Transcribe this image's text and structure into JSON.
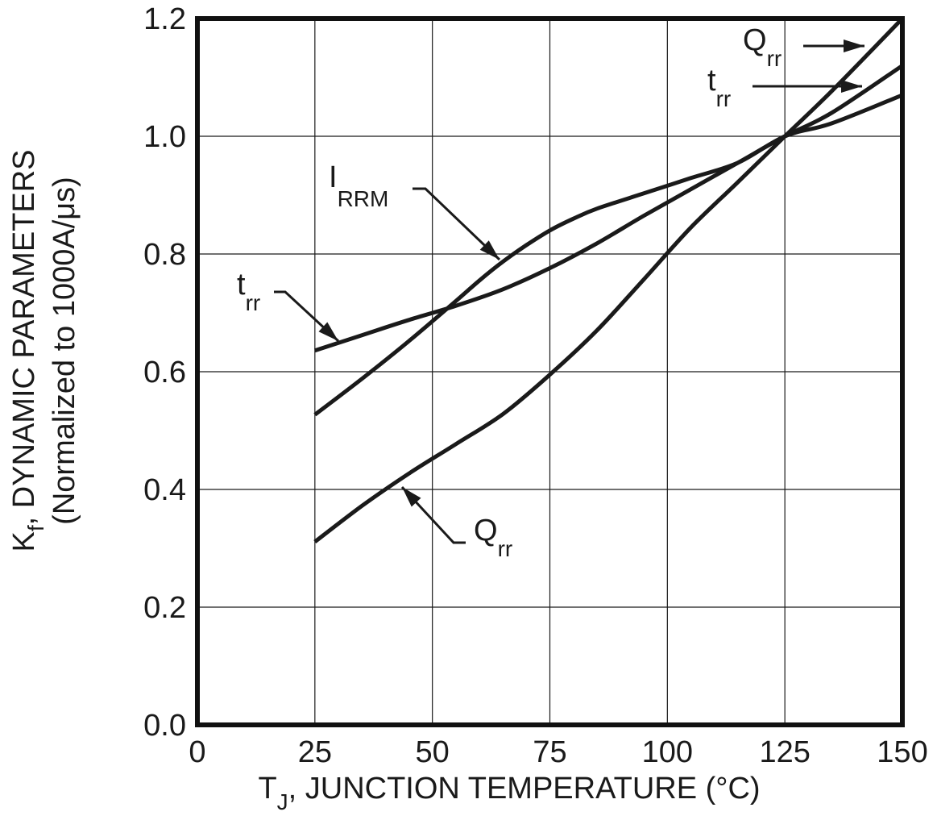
{
  "chart_data": {
    "type": "line",
    "x_axis": {
      "label_main": "T",
      "label_sub": "J",
      "label_rest": ", JUNCTION TEMPERATURE (°C)",
      "range": [
        0,
        150
      ],
      "ticks": [
        "0",
        "25",
        "50",
        "75",
        "100",
        "125",
        "150"
      ],
      "tick_values": [
        0,
        25,
        50,
        75,
        100,
        125,
        150
      ]
    },
    "y_axis": {
      "label_main": "K",
      "label_sub": "f",
      "label_rest": ", DYNAMIC PARAMETERS",
      "label_line2": "(Normalized  to 1000A/μs)",
      "range": [
        0,
        1.2
      ],
      "ticks": [
        "0.0",
        "0.2",
        "0.4",
        "0.6",
        "0.8",
        "1.0",
        "1.2"
      ],
      "tick_values": [
        0,
        0.2,
        0.4,
        0.6,
        0.8,
        1.0,
        1.2
      ]
    },
    "grid": true,
    "series": [
      {
        "name": "IRRM",
        "x": [
          25,
          35,
          45,
          55,
          60,
          65,
          70,
          75,
          80,
          85,
          95,
          105,
          115,
          125,
          135,
          150
        ],
        "y": [
          0.527,
          0.588,
          0.652,
          0.72,
          0.755,
          0.787,
          0.815,
          0.84,
          0.86,
          0.877,
          0.903,
          0.929,
          0.955,
          1.0,
          1.022,
          1.07
        ]
      },
      {
        "name": "trr",
        "x": [
          25,
          35,
          45,
          55,
          65,
          75,
          85,
          95,
          105,
          115,
          125,
          135,
          150
        ],
        "y": [
          0.636,
          0.662,
          0.688,
          0.712,
          0.74,
          0.776,
          0.818,
          0.865,
          0.91,
          0.955,
          1.0,
          1.04,
          1.12
        ]
      },
      {
        "name": "Qrr",
        "x": [
          25,
          35,
          45,
          55,
          65,
          75,
          85,
          95,
          105,
          115,
          125,
          135,
          150
        ],
        "y": [
          0.311,
          0.372,
          0.427,
          0.477,
          0.528,
          0.595,
          0.67,
          0.757,
          0.845,
          0.922,
          1.0,
          1.077,
          1.2
        ]
      }
    ],
    "annotations": [
      {
        "id": "irrm",
        "main": "I",
        "sub": "RRM",
        "series": "IRRM"
      },
      {
        "id": "trr_left",
        "main": "t",
        "sub": "rr",
        "series": "trr"
      },
      {
        "id": "qrr_bottom",
        "main": "Q",
        "sub": "rr",
        "series": "Qrr"
      },
      {
        "id": "qrr_top",
        "main": "Q",
        "sub": "rr",
        "series": "Qrr"
      },
      {
        "id": "trr_top",
        "main": "t",
        "sub": "rr",
        "series": "trr"
      }
    ]
  }
}
